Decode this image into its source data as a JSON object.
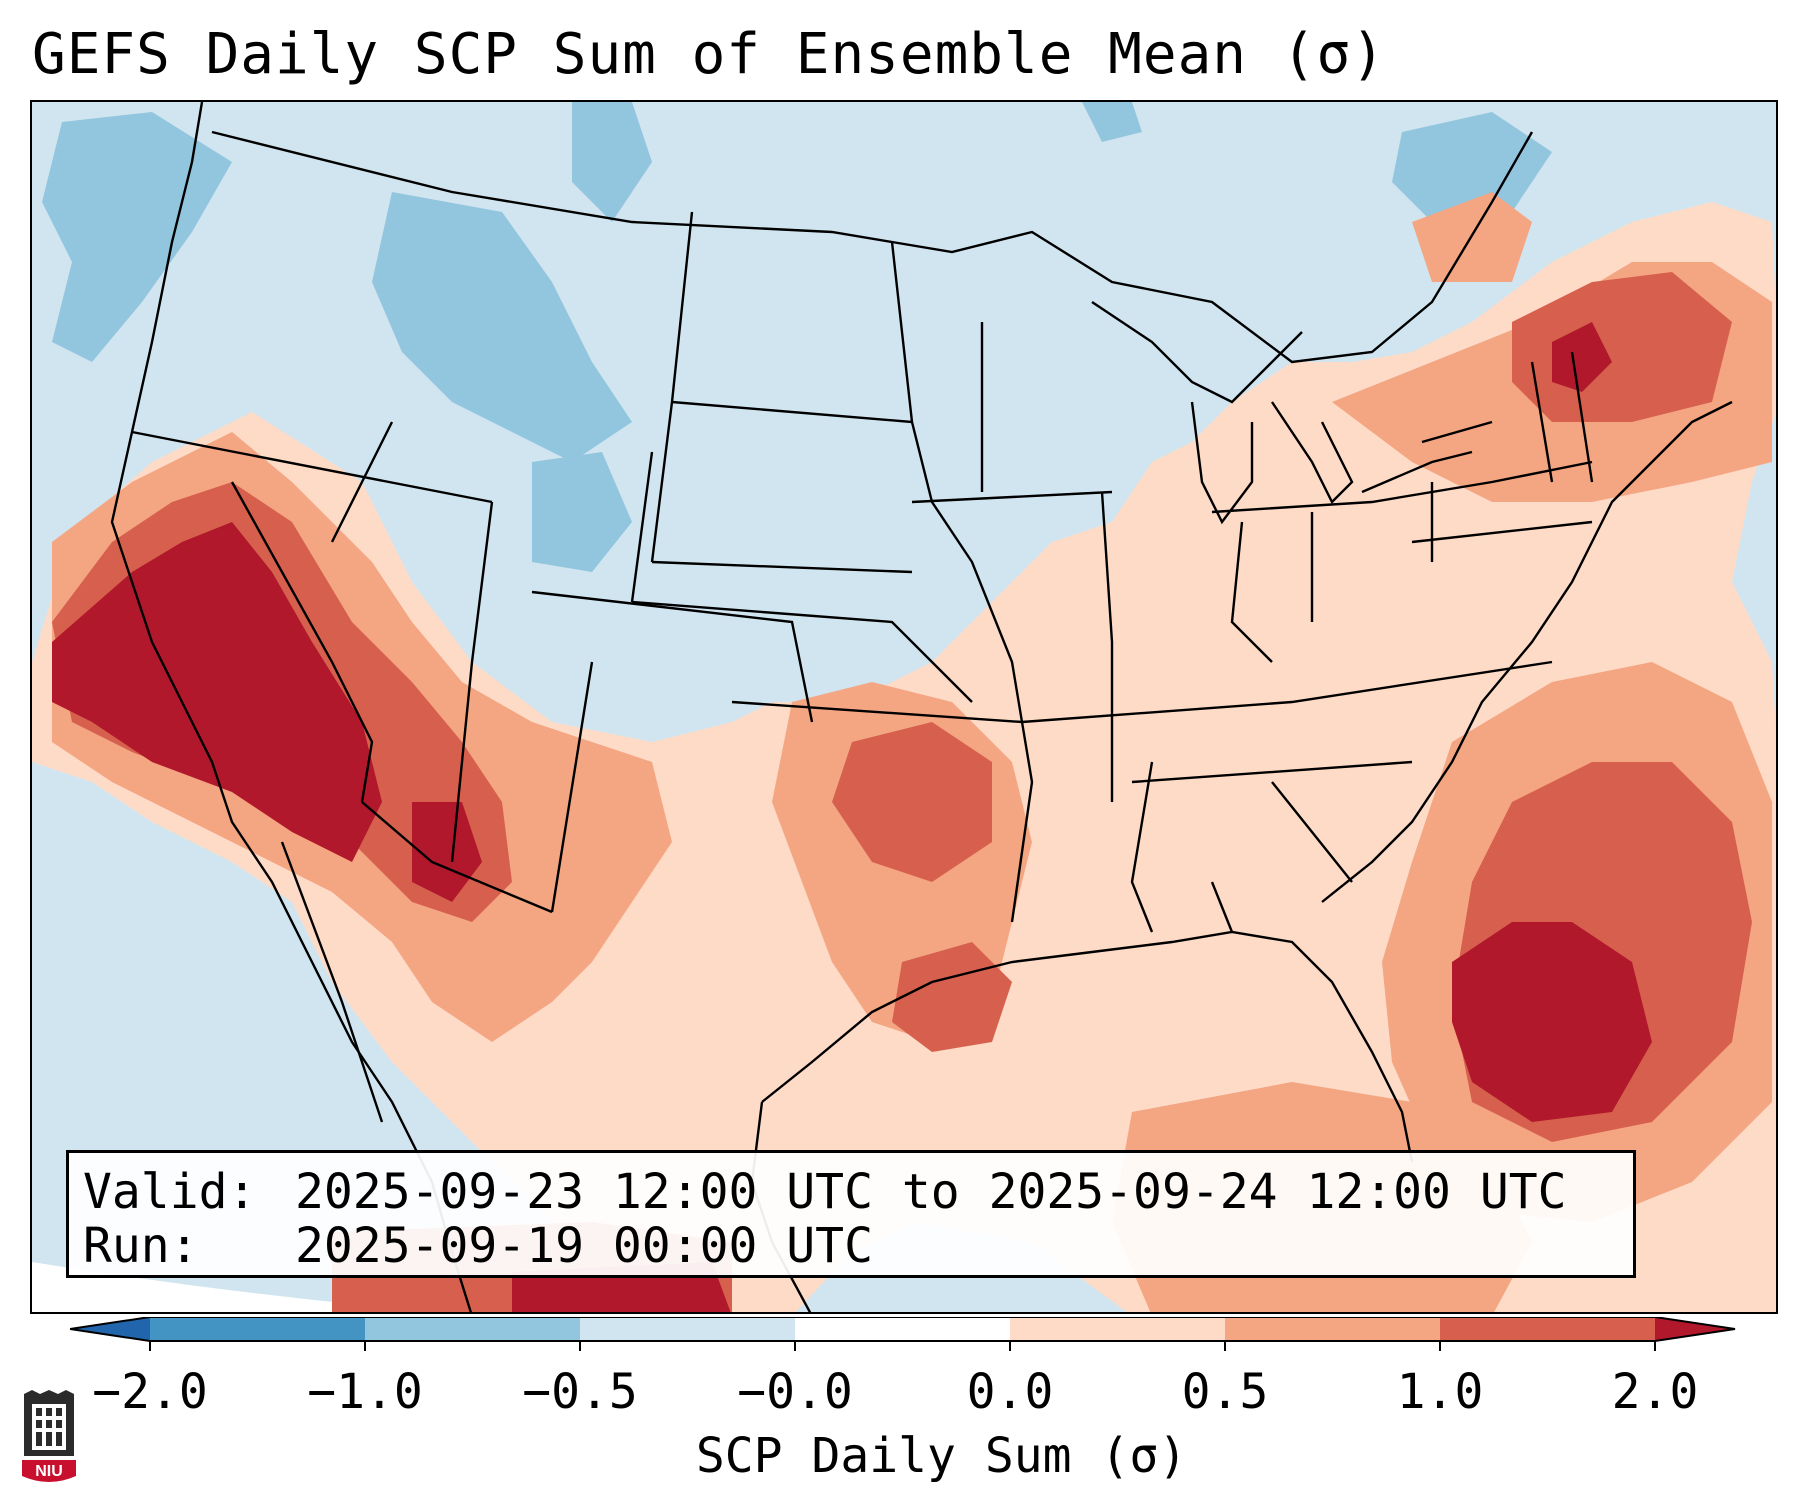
{
  "title": "GEFS Daily SCP Sum of Ensemble Mean (σ)",
  "valid": {
    "valid_label": "Valid:",
    "valid_value": "2025-09-23 12:00 UTC to 2025-09-24 12:00 UTC",
    "run_label": "Run:",
    "run_value": "2025-09-19 00:00 UTC"
  },
  "colorbar": {
    "label": "SCP Daily Sum (σ)",
    "ticks": [
      "−2.0",
      "−1.0",
      "−0.5",
      "−0.0",
      "0.0",
      "0.5",
      "1.0",
      "2.0"
    ],
    "colors": [
      "#2166ac",
      "#4393c3",
      "#92c5de",
      "#d1e5f0",
      "#ffffff",
      "#fddbc7",
      "#f4a582",
      "#d6604d",
      "#b2182b"
    ]
  },
  "map_colors": {
    "ocean_background": "#d1e5f0",
    "neutral": "#d1e5f0",
    "weak_negative": "#92c5de",
    "weak_positive": "#fddbc7",
    "moderate_positive": "#f4a582",
    "strong_positive": "#d6604d",
    "extreme_positive": "#b2182b"
  },
  "logo": {
    "text": "NIU"
  }
}
